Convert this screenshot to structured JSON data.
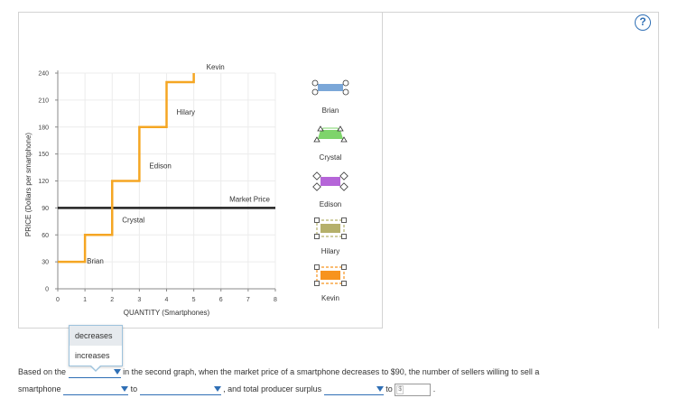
{
  "help_label": "?",
  "chart_data": {
    "type": "line",
    "ylabel": "PRICE (Dollars per smartphone)",
    "xlabel": "QUANTITY (Smartphones)",
    "xlim": [
      0,
      8
    ],
    "ylim": [
      0,
      240
    ],
    "x_ticks": [
      0,
      1,
      2,
      3,
      4,
      5,
      6,
      7,
      8
    ],
    "y_ticks": [
      0,
      30,
      60,
      90,
      120,
      150,
      180,
      210,
      240
    ],
    "grid": true,
    "supply_curve": {
      "color": "#f5a623",
      "points": [
        [
          0,
          30
        ],
        [
          1,
          30
        ],
        [
          1,
          60
        ],
        [
          2,
          60
        ],
        [
          2,
          120
        ],
        [
          3,
          120
        ],
        [
          3,
          180
        ],
        [
          4,
          180
        ],
        [
          4,
          230
        ],
        [
          5,
          230
        ],
        [
          5,
          240
        ]
      ]
    },
    "market_price": {
      "value": 90,
      "label": "Market Price",
      "color": "#222222"
    },
    "seller_labels": [
      {
        "name": "Brian",
        "x": 1.0,
        "y": 22
      },
      {
        "name": "Crystal",
        "x": 2.3,
        "y": 68
      },
      {
        "name": "Edison",
        "x": 3.3,
        "y": 128
      },
      {
        "name": "Hilary",
        "x": 4.3,
        "y": 188
      },
      {
        "name": "Kevin",
        "x": 5.4,
        "y": 238
      }
    ]
  },
  "tools": [
    {
      "label": "Brian",
      "color": "#7ba7d8",
      "shape": "bar"
    },
    {
      "label": "Crystal",
      "color": "#7ed46b",
      "shape": "trapezoid"
    },
    {
      "label": "Edison",
      "color": "#b565d8",
      "shape": "diamond"
    },
    {
      "label": "Hilary",
      "color": "#b5b06a",
      "shape": "dashed"
    },
    {
      "label": "Kevin",
      "color": "#f7931e",
      "shape": "dashed"
    }
  ],
  "sentence": {
    "part1": "Based on the",
    "part2": "in the second graph, when the market price of a smartphone decreases to $90, the number of sellers willing to sell a",
    "part3": "smartphone",
    "part4": "to",
    "part5": ", and total producer surplus",
    "part6": "to",
    "dollar": "$",
    "end": "."
  },
  "dropdown_options": [
    "decreases",
    "increases"
  ]
}
